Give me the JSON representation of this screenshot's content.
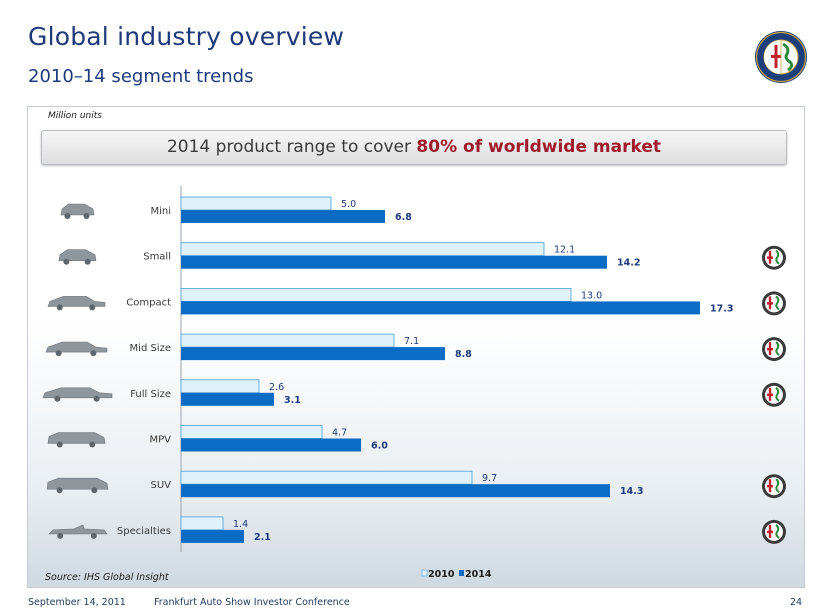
{
  "header": {
    "title": "Global industry overview",
    "subtitle": "2010–14 segment trends"
  },
  "units_label": "Million units",
  "banner": {
    "prefix": "2014 product range to cover ",
    "highlight": "80% of worldwide market"
  },
  "source": "Source: IHS Global Insight",
  "footer": {
    "date": "September 14, 2011",
    "event": "Frankfurt Auto Show Investor Conference",
    "page": "24"
  },
  "colors": {
    "bar_2010": "#dff2fb",
    "bar_2010_border": "#4a9fd8",
    "bar_2014": "#0a6cc4",
    "highlight": "#a01c2c"
  },
  "chart_data": {
    "type": "bar",
    "orientation": "horizontal",
    "categories": [
      "Mini",
      "Small",
      "Compact",
      "Mid Size",
      "Full Size",
      "MPV",
      "SUV",
      "Specialties"
    ],
    "series": [
      {
        "name": "2010",
        "values": [
          5.0,
          12.1,
          13.0,
          7.1,
          2.6,
          4.7,
          9.7,
          1.4
        ]
      },
      {
        "name": "2014",
        "values": [
          6.8,
          14.2,
          17.3,
          8.8,
          3.1,
          6.0,
          14.3,
          2.1
        ]
      }
    ],
    "value_labels": {
      "2010": [
        "5.0",
        "12.1",
        "13.0",
        "7.1",
        "2.6",
        "4.7",
        "9.7",
        "1.4"
      ],
      "2014": [
        "6.8",
        "14.2",
        "17.3",
        "8.8",
        "3.1",
        "6.0",
        "14.3",
        "2.1"
      ]
    },
    "brand_badge_segments": [
      "Small",
      "Compact",
      "Mid Size",
      "Full Size",
      "SUV",
      "Specialties"
    ],
    "segment_icons": [
      "hatchback-mini-icon",
      "hatchback-small-icon",
      "compact-car-icon",
      "sedan-icon",
      "estate-car-icon",
      "minivan-icon",
      "suv-icon",
      "convertible-icon"
    ],
    "legend_position": "bottom-center",
    "grid": false
  }
}
